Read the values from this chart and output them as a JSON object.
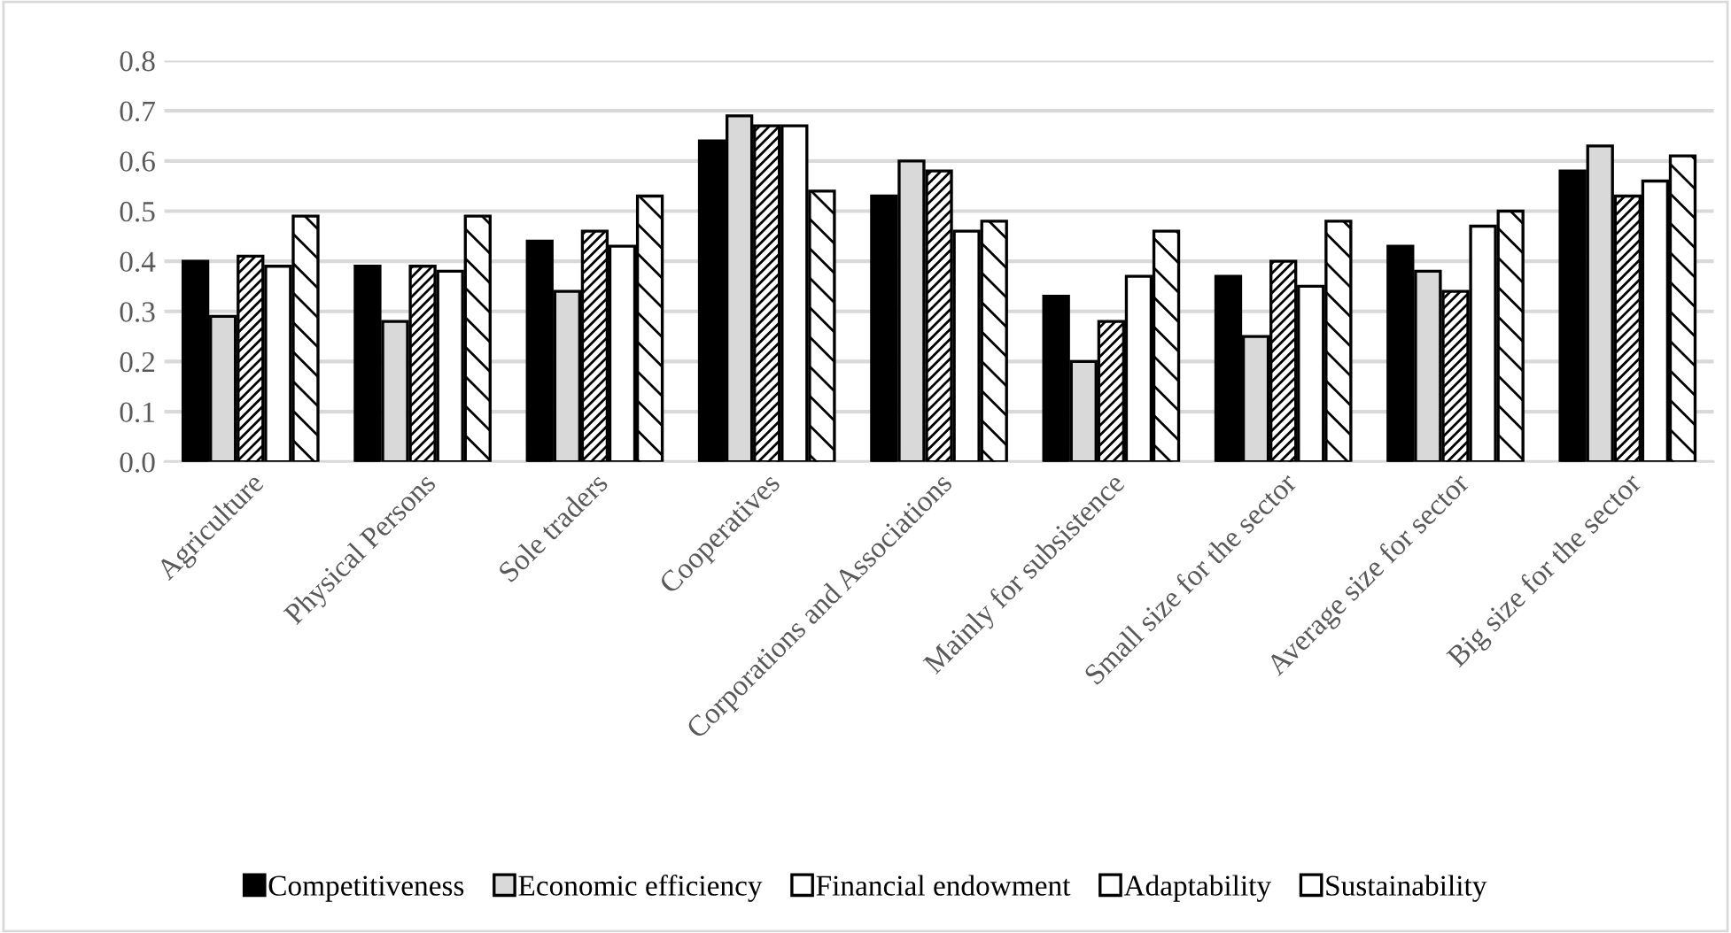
{
  "chart_data": {
    "type": "bar",
    "categories": [
      "Agriculture",
      "Physical Persons",
      "Sole traders",
      "Cooperatives",
      "Corporations and Associations",
      "Mainly for subsistence",
      "Small size for the sector",
      "Average size for sector",
      "Big size for the sector"
    ],
    "series": [
      {
        "name": "Competitiveness",
        "color": "#000000",
        "values": [
          0.4,
          0.39,
          0.44,
          0.64,
          0.53,
          0.33,
          0.37,
          0.43,
          0.58
        ]
      },
      {
        "name": "Economic efficiency",
        "color": "#d9d9d9",
        "values": [
          0.29,
          0.28,
          0.34,
          0.69,
          0.6,
          0.2,
          0.25,
          0.38,
          0.63
        ]
      },
      {
        "name": "Financial endowment",
        "color": "#ffffff",
        "values": [
          0.41,
          0.39,
          0.46,
          0.67,
          0.58,
          0.28,
          0.4,
          0.34,
          0.53
        ]
      },
      {
        "name": "Adaptability",
        "color": "#ffffff",
        "values": [
          0.39,
          0.38,
          0.43,
          0.67,
          0.46,
          0.37,
          0.35,
          0.47,
          0.56
        ]
      },
      {
        "name": "Sustainability",
        "color": "#ffffff",
        "values": [
          0.49,
          0.49,
          0.53,
          0.54,
          0.48,
          0.46,
          0.48,
          0.5,
          0.61
        ]
      }
    ],
    "ylim": [
      0,
      0.8
    ],
    "yticks": [
      {
        "value": 0,
        "label": "0.0"
      },
      {
        "value": 0.1,
        "label": "0.1"
      },
      {
        "value": 0.2,
        "label": "0.2"
      },
      {
        "value": 0.3,
        "label": "0.3"
      },
      {
        "value": 0.4,
        "label": "0.4"
      },
      {
        "value": 0.5,
        "label": "0.5"
      },
      {
        "value": 0.6,
        "label": "0.6"
      },
      {
        "value": 0.7,
        "label": "0.7"
      },
      {
        "value": 0.8,
        "label": "0.8"
      }
    ],
    "grid": "y",
    "legend": "bottom"
  }
}
